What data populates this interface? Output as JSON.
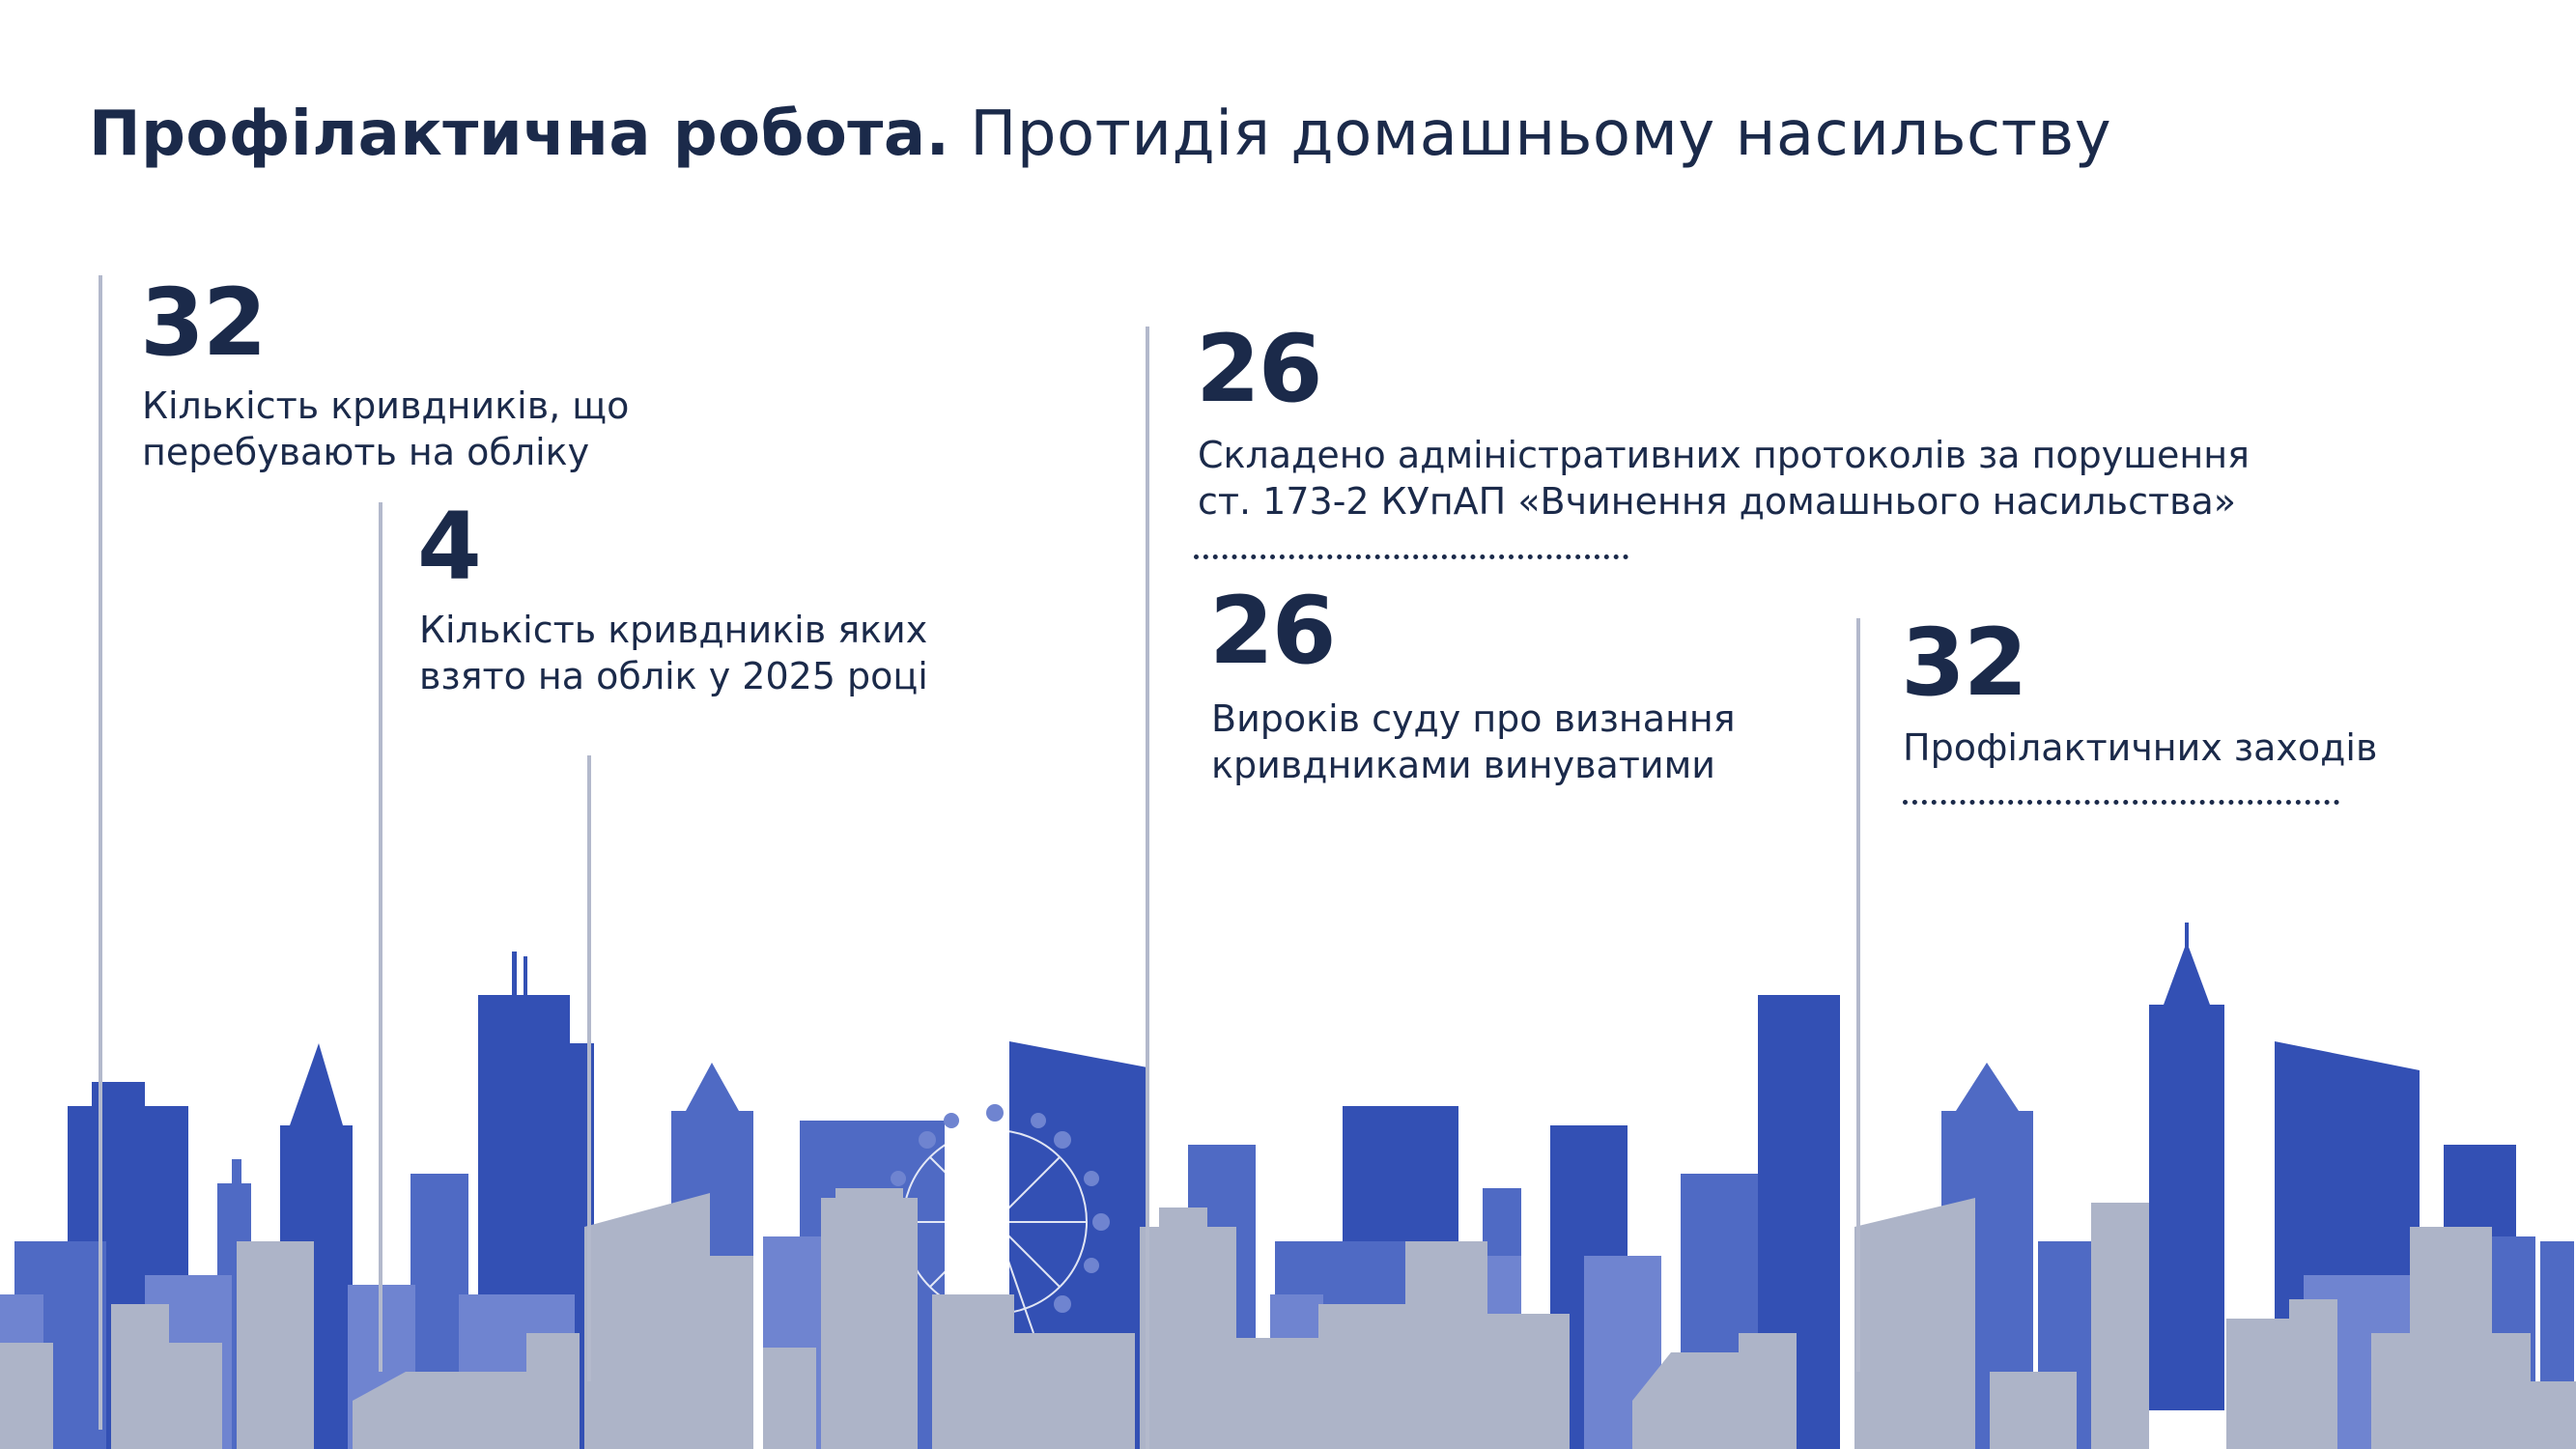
{
  "title": {
    "bold": "Профілактична робота.",
    "normal": "Протидія домашньому насильству"
  },
  "stats": [
    {
      "value": "32",
      "label": "Кількість кривдників, що\nперебувають на обліку"
    },
    {
      "value": "4",
      "label": "Кількість кривдників яких\nвзято на облік у 2025 році"
    },
    {
      "value": "26",
      "label": "Складено адміністративних протоколів за порушення\nст. 173-2 КУпАП «Вчинення домашнього насильства»"
    },
    {
      "value": "26",
      "label": "Вироків суду про визнання\nкривдниками винуватими"
    },
    {
      "value": "32",
      "label": "Профілактичних заходів"
    }
  ],
  "colors": {
    "text": "#1b2a4a",
    "line": "#b3b9cc",
    "skyline_dark": "#3350b4",
    "skyline_mid": "#4f6ac4",
    "skyline_light": "#6f84d0",
    "skyline_grey": "#adb4c8"
  }
}
